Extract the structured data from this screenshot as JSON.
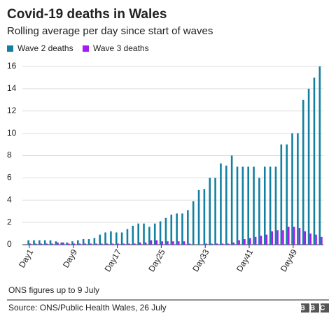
{
  "chart_data": {
    "type": "bar",
    "title": "Covid-19 deaths in Wales",
    "subtitle": "Rolling average per day since start of waves",
    "categories": [
      "Day1",
      null,
      null,
      null,
      null,
      null,
      null,
      null,
      "Day9",
      null,
      null,
      null,
      null,
      null,
      null,
      null,
      "Day17",
      null,
      null,
      null,
      null,
      null,
      null,
      null,
      "Day25",
      null,
      null,
      null,
      null,
      null,
      null,
      null,
      "Day33",
      null,
      null,
      null,
      null,
      null,
      null,
      null,
      "Day41",
      null,
      null,
      null,
      null,
      null,
      null,
      null,
      "Day49",
      null,
      null,
      null,
      null,
      null
    ],
    "series": [
      {
        "name": "Wave 2 deaths",
        "color": "#1380a1",
        "values": [
          0.4,
          0.4,
          0.4,
          0.4,
          0.4,
          0.3,
          0.2,
          0.2,
          0.3,
          0.4,
          0.5,
          0.5,
          0.6,
          0.9,
          1.1,
          1.2,
          1.1,
          1.1,
          1.4,
          1.7,
          1.9,
          1.9,
          1.6,
          1.9,
          2.1,
          2.4,
          2.7,
          2.8,
          2.8,
          3.1,
          3.9,
          4.9,
          5.0,
          6.0,
          6.0,
          7.3,
          7.1,
          8.0,
          7.0,
          7.0,
          7.0,
          7.0,
          6.0,
          7.0,
          7.0,
          7.0,
          9.0,
          9.0,
          10,
          10,
          13,
          14,
          15,
          16
        ]
      },
      {
        "name": "Wave 3 deaths",
        "color": "#a31cf0",
        "values": [
          0.1,
          0.1,
          0.1,
          0.1,
          0.1,
          0.2,
          0.2,
          0.1,
          0.1,
          0.1,
          0.1,
          0.1,
          0.1,
          0.1,
          0.1,
          0.1,
          0.1,
          0.1,
          0.1,
          0.1,
          0.2,
          0.2,
          0.4,
          0.4,
          0.3,
          0.3,
          0.3,
          0.3,
          0.3,
          0.1,
          0,
          0,
          0.1,
          0.1,
          0.1,
          0.1,
          0.1,
          0.2,
          0.4,
          0.5,
          0.6,
          0.7,
          0.8,
          0.9,
          1.2,
          1.3,
          1.3,
          1.6,
          1.6,
          1.5,
          1.2,
          1.0,
          0.9,
          0.7
        ]
      }
    ],
    "ylim": [
      0,
      16
    ],
    "yticks": [
      0,
      2,
      4,
      6,
      8,
      10,
      12,
      14,
      16
    ],
    "grid": true,
    "note": "ONS figures up to 9 July",
    "source": "Source: ONS/Public Health Wales, 26 July",
    "logo": "BBC"
  }
}
